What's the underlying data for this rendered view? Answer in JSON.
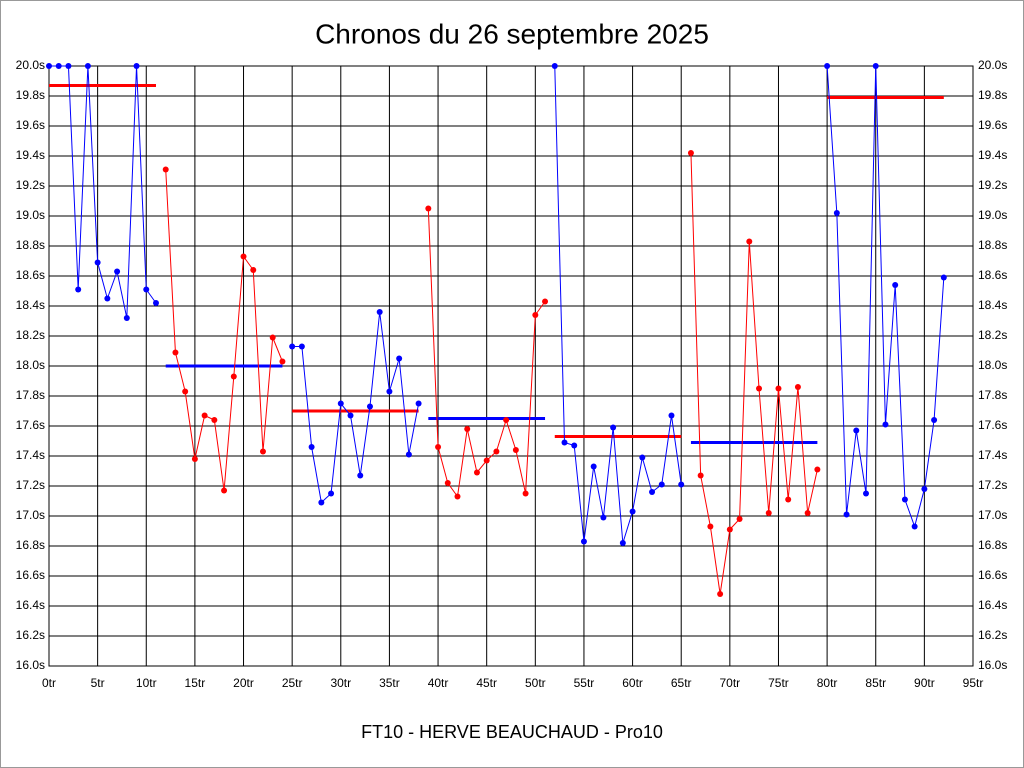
{
  "chart_data": {
    "type": "line",
    "title": "Chronos du 26 septembre 2025",
    "x_label": "FT10 - HERVE BEAUCHAUD - Pro10",
    "xlim": [
      0,
      95
    ],
    "ylim": [
      16,
      20
    ],
    "grid": true,
    "xticks": [
      {
        "value": 0,
        "label": "0tr"
      },
      {
        "value": 5,
        "label": "5tr"
      },
      {
        "value": 10,
        "label": "10tr"
      },
      {
        "value": 15,
        "label": "15tr"
      },
      {
        "value": 20,
        "label": "20tr"
      },
      {
        "value": 25,
        "label": "25tr"
      },
      {
        "value": 30,
        "label": "30tr"
      },
      {
        "value": 35,
        "label": "35tr"
      },
      {
        "value": 40,
        "label": "40tr"
      },
      {
        "value": 45,
        "label": "45tr"
      },
      {
        "value": 50,
        "label": "50tr"
      },
      {
        "value": 55,
        "label": "55tr"
      },
      {
        "value": 60,
        "label": "60tr"
      },
      {
        "value": 65,
        "label": "65tr"
      },
      {
        "value": 70,
        "label": "70tr"
      },
      {
        "value": 75,
        "label": "75tr"
      },
      {
        "value": 80,
        "label": "80tr"
      },
      {
        "value": 85,
        "label": "85tr"
      },
      {
        "value": 90,
        "label": "90tr"
      },
      {
        "value": 95,
        "label": "95tr"
      }
    ],
    "yticks": [
      {
        "value": 16.0,
        "label": "16.0s"
      },
      {
        "value": 16.2,
        "label": "16.2s"
      },
      {
        "value": 16.4,
        "label": "16.4s"
      },
      {
        "value": 16.6,
        "label": "16.6s"
      },
      {
        "value": 16.8,
        "label": "16.8s"
      },
      {
        "value": 17.0,
        "label": "17.0s"
      },
      {
        "value": 17.2,
        "label": "17.2s"
      },
      {
        "value": 17.4,
        "label": "17.4s"
      },
      {
        "value": 17.6,
        "label": "17.6s"
      },
      {
        "value": 17.8,
        "label": "17.8s"
      },
      {
        "value": 18.0,
        "label": "18.0s"
      },
      {
        "value": 18.2,
        "label": "18.2s"
      },
      {
        "value": 18.4,
        "label": "18.4s"
      },
      {
        "value": 18.6,
        "label": "18.6s"
      },
      {
        "value": 18.8,
        "label": "18.8s"
      },
      {
        "value": 19.0,
        "label": "19.0s"
      },
      {
        "value": 19.2,
        "label": "19.2s"
      },
      {
        "value": 19.4,
        "label": "19.4s"
      },
      {
        "value": 19.6,
        "label": "19.6s"
      },
      {
        "value": 19.8,
        "label": "19.8s"
      },
      {
        "value": 20.0,
        "label": "20.0s"
      }
    ],
    "series": [
      {
        "color": "#0000ff",
        "mean_color": "#ff0000",
        "mean": 19.87,
        "x": [
          0,
          1,
          2,
          3,
          4,
          5,
          6,
          7,
          8,
          9,
          10,
          11
        ],
        "values": [
          20.0,
          20.0,
          20.0,
          18.51,
          20.0,
          18.69,
          18.45,
          18.63,
          18.32,
          20.0,
          18.51,
          18.42
        ]
      },
      {
        "color": "#ff0000",
        "mean_color": "#0000ff",
        "mean": 18.0,
        "x": [
          12,
          13,
          14,
          15,
          16,
          17,
          18,
          19,
          20,
          21,
          22,
          23,
          24
        ],
        "values": [
          19.31,
          18.09,
          17.83,
          17.38,
          17.67,
          17.64,
          17.17,
          17.93,
          18.73,
          18.64,
          17.43,
          18.19,
          18.03
        ]
      },
      {
        "color": "#0000ff",
        "mean_color": "#ff0000",
        "mean": 17.7,
        "x": [
          25,
          26,
          27,
          28,
          29,
          30,
          31,
          32,
          33,
          34,
          35,
          36,
          37,
          38
        ],
        "values": [
          18.13,
          18.13,
          17.46,
          17.09,
          17.15,
          17.75,
          17.67,
          17.27,
          17.73,
          18.36,
          17.83,
          18.05,
          17.41,
          17.75
        ]
      },
      {
        "color": "#ff0000",
        "mean_color": "#0000ff",
        "mean": 17.65,
        "x": [
          39,
          40,
          41,
          42,
          43,
          44,
          45,
          46,
          47,
          48,
          49,
          50,
          51
        ],
        "values": [
          19.05,
          17.46,
          17.22,
          17.13,
          17.58,
          17.29,
          17.37,
          17.43,
          17.64,
          17.44,
          17.15,
          18.34,
          18.43
        ]
      },
      {
        "color": "#0000ff",
        "mean_color": "#ff0000",
        "mean": 17.53,
        "x": [
          52,
          53,
          54,
          55,
          56,
          57,
          58,
          59,
          60,
          61,
          62,
          63,
          64,
          65
        ],
        "values": [
          20.0,
          17.49,
          17.47,
          16.83,
          17.33,
          16.99,
          17.59,
          16.82,
          17.03,
          17.39,
          17.16,
          17.21,
          17.67,
          17.21
        ]
      },
      {
        "color": "#ff0000",
        "mean_color": "#0000ff",
        "mean": 17.49,
        "x": [
          66,
          67,
          68,
          69,
          70,
          71,
          72,
          73,
          74,
          75,
          76,
          77,
          78,
          79
        ],
        "values": [
          19.42,
          17.27,
          16.93,
          16.48,
          16.91,
          16.98,
          18.83,
          17.85,
          17.02,
          17.85,
          17.11,
          17.86,
          17.02,
          17.31
        ]
      },
      {
        "color": "#0000ff",
        "mean_color": "#ff0000",
        "mean": 19.79,
        "x": [
          80,
          81,
          82,
          83,
          84,
          85,
          86,
          87,
          88,
          89,
          90,
          91,
          92
        ],
        "values": [
          20.0,
          19.02,
          17.01,
          17.57,
          17.15,
          20.0,
          17.61,
          18.54,
          17.11,
          16.93,
          17.18,
          17.64,
          18.59
        ]
      }
    ]
  }
}
